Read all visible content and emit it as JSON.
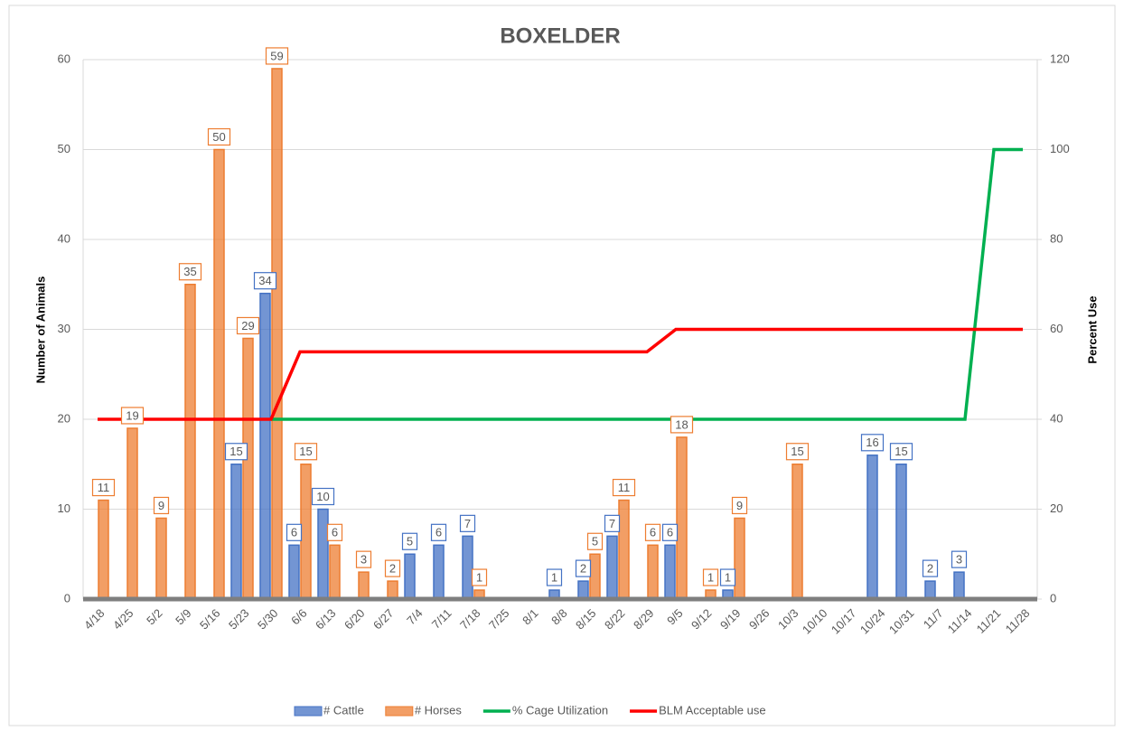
{
  "chart_data": {
    "type": "bar",
    "title": "BOXELDER",
    "y_label": "Number of Animals",
    "y2_label": "Percent Use",
    "categories": [
      "4/18",
      "4/25",
      "5/2",
      "5/9",
      "5/16",
      "5/23",
      "5/30",
      "6/6",
      "6/13",
      "6/20",
      "6/27",
      "7/4",
      "7/11",
      "7/18",
      "7/25",
      "8/1",
      "8/8",
      "8/15",
      "8/22",
      "8/29",
      "9/5",
      "9/12",
      "9/19",
      "9/26",
      "10/3",
      "10/10",
      "10/17",
      "10/24",
      "10/31",
      "11/7",
      "11/14",
      "11/21",
      "11/28"
    ],
    "series": [
      {
        "name": "# Cattle",
        "type": "bar",
        "color": "#4472c4",
        "values": [
          null,
          null,
          null,
          null,
          null,
          15,
          34,
          6,
          10,
          null,
          null,
          5,
          6,
          7,
          null,
          null,
          1,
          2,
          7,
          null,
          6,
          null,
          1,
          null,
          null,
          null,
          null,
          16,
          15,
          2,
          3,
          null,
          null
        ]
      },
      {
        "name": "# Horses",
        "type": "bar",
        "color": "#ed7d31",
        "values": [
          11,
          19,
          9,
          35,
          50,
          29,
          59,
          15,
          6,
          3,
          2,
          null,
          null,
          1,
          null,
          null,
          null,
          5,
          11,
          6,
          18,
          1,
          9,
          null,
          15,
          null,
          null,
          null,
          null,
          null,
          null,
          null,
          null
        ]
      },
      {
        "name": "% Cage Utilization",
        "type": "line",
        "axis": "y2",
        "color": "#00b050",
        "values": [
          null,
          null,
          null,
          null,
          null,
          null,
          40,
          40,
          40,
          40,
          40,
          40,
          40,
          40,
          40,
          40,
          40,
          40,
          40,
          40,
          40,
          40,
          40,
          40,
          40,
          40,
          40,
          40,
          40,
          40,
          40,
          100,
          100
        ]
      },
      {
        "name": "BLM Acceptable use",
        "type": "line",
        "axis": "y2",
        "color": "#ff0000",
        "values": [
          40,
          40,
          40,
          40,
          40,
          40,
          40,
          55,
          55,
          55,
          55,
          55,
          55,
          55,
          55,
          55,
          55,
          55,
          55,
          55,
          60,
          60,
          60,
          60,
          60,
          60,
          60,
          60,
          60,
          60,
          60,
          60,
          60
        ]
      }
    ],
    "ylim": [
      0,
      60
    ],
    "yticks": [
      0,
      10,
      20,
      30,
      40,
      50,
      60
    ],
    "y2lim": [
      0,
      120
    ],
    "y2ticks": [
      0,
      20,
      40,
      60,
      80,
      100,
      120
    ],
    "grid": true,
    "legend": "bottom"
  }
}
